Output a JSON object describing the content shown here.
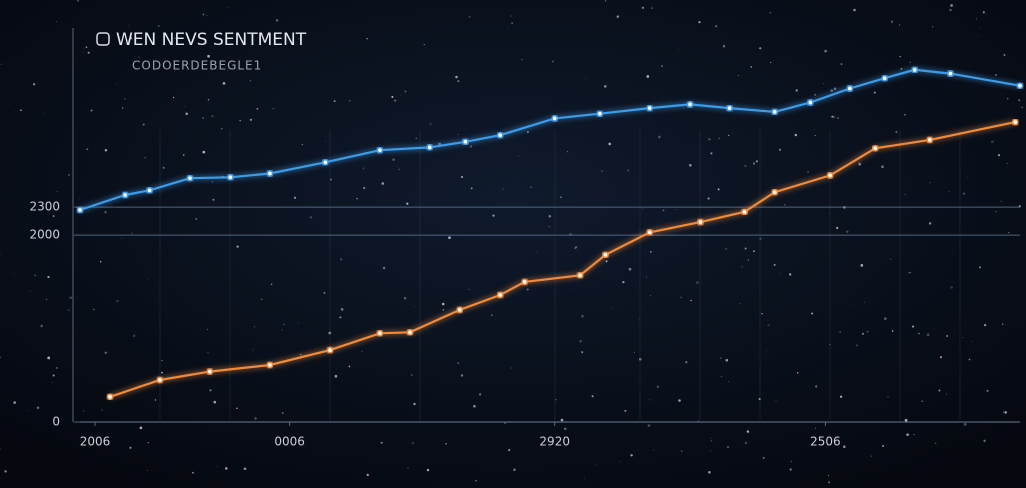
{
  "chart_data": {
    "type": "line",
    "title": "WEN NEVS SENTMENT",
    "subtitle": "CODOERDEBEGLE1",
    "xlim": [
      0,
      100
    ],
    "xticks": [
      {
        "value": 1.6,
        "label": "2006"
      },
      {
        "value": 22.3,
        "label": "0006"
      },
      {
        "value": 50.5,
        "label": "2920"
      },
      {
        "value": 79.3,
        "label": "2506"
      }
    ],
    "ylim": [
      0,
      4250
    ],
    "yticks": [
      0,
      2000,
      2300
    ],
    "grid": true,
    "series": [
      {
        "color": "#3d9be8",
        "x": [
          0,
          4.8,
          7.4,
          11.7,
          16.0,
          20.2,
          26.1,
          31.9,
          37.2,
          41.0,
          44.7,
          50.5,
          55.3,
          60.6,
          64.9,
          69.1,
          73.9,
          77.7,
          81.9,
          85.6,
          88.8,
          92.6,
          100
        ],
        "values": [
          2270,
          2430,
          2480,
          2610,
          2620,
          2660,
          2780,
          2910,
          2940,
          3000,
          3070,
          3250,
          3300,
          3360,
          3400,
          3360,
          3320,
          3420,
          3570,
          3680,
          3770,
          3730,
          3600
        ]
      },
      {
        "color": "#f08a3a",
        "x": [
          3.2,
          8.5,
          13.8,
          20.2,
          26.6,
          31.9,
          35.1,
          40.4,
          44.7,
          47.3,
          53.2,
          55.9,
          60.6,
          66.0,
          70.7,
          73.9,
          79.8,
          84.6,
          90.4,
          99.5
        ],
        "values": [
          270,
          450,
          540,
          610,
          770,
          950,
          960,
          1200,
          1360,
          1500,
          1570,
          1790,
          2030,
          2140,
          2250,
          2460,
          2640,
          2930,
          3020,
          3210
        ]
      }
    ]
  }
}
